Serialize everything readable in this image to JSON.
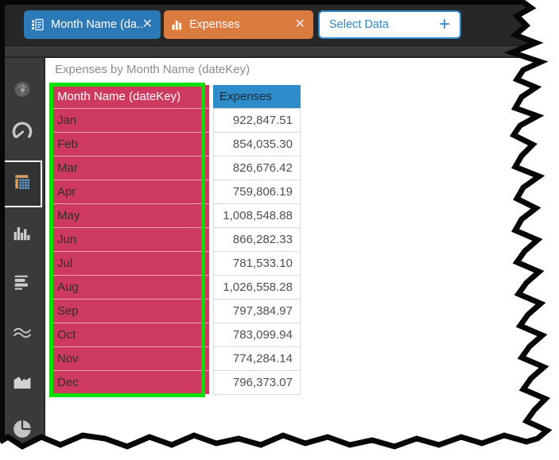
{
  "icons": {
    "close": "✕",
    "plus": "+"
  },
  "toolbar": {
    "field_chips": [
      {
        "label": "Month Name (da...",
        "role": "row-field",
        "color": "#2B79B7"
      },
      {
        "label": "Expenses",
        "role": "value-field",
        "color": "#DC7B3E"
      },
      {
        "label": "Select Data",
        "role": "add-field",
        "color": "#FFFFFF",
        "text_color": "#2E86C6"
      }
    ]
  },
  "sidebar": {
    "selected": "grid",
    "items": [
      {
        "name": "smart-insights",
        "selected": false
      },
      {
        "name": "gauge",
        "selected": false
      },
      {
        "name": "grid",
        "selected": true
      },
      {
        "name": "column-chart",
        "selected": false
      },
      {
        "name": "bar-chart",
        "selected": false
      },
      {
        "name": "line-chart",
        "selected": false
      },
      {
        "name": "area-chart",
        "selected": false
      },
      {
        "name": "pie-chart",
        "selected": false
      }
    ]
  },
  "main": {
    "title": "Expenses by Month Name (dateKey)",
    "table": {
      "columns": [
        {
          "label": "Month Name (dateKey)",
          "header_bg": "#CE3A5F",
          "selected": true
        },
        {
          "label": "Expenses",
          "header_bg": "#2E8CCB",
          "selected": false
        }
      ],
      "rows": [
        {
          "month": "Jan",
          "expenses": "922,847.51"
        },
        {
          "month": "Feb",
          "expenses": "854,035.30"
        },
        {
          "month": "Mar",
          "expenses": "826,676.42"
        },
        {
          "month": "Apr",
          "expenses": "759,806.19"
        },
        {
          "month": "May",
          "expenses": "1,008,548.88"
        },
        {
          "month": "Jun",
          "expenses": "866,282.33"
        },
        {
          "month": "Jul",
          "expenses": "781,533.10"
        },
        {
          "month": "Aug",
          "expenses": "1,026,558.28"
        },
        {
          "month": "Sep",
          "expenses": "797,384.97"
        },
        {
          "month": "Oct",
          "expenses": "783,099.94"
        },
        {
          "month": "Nov",
          "expenses": "774,284.14"
        },
        {
          "month": "Dec",
          "expenses": "796,373.07"
        }
      ],
      "selection_color": "#00DF00"
    }
  },
  "chart_data": {
    "type": "table",
    "title": "Expenses by Month Name (dateKey)",
    "columns": [
      "Month Name (dateKey)",
      "Expenses"
    ],
    "rows": [
      [
        "Jan",
        922847.51
      ],
      [
        "Feb",
        854035.3
      ],
      [
        "Mar",
        826676.42
      ],
      [
        "Apr",
        759806.19
      ],
      [
        "May",
        1008548.88
      ],
      [
        "Jun",
        866282.33
      ],
      [
        "Jul",
        781533.1
      ],
      [
        "Aug",
        1026558.28
      ],
      [
        "Sep",
        797384.97
      ],
      [
        "Oct",
        783099.94
      ],
      [
        "Nov",
        774284.14
      ],
      [
        "Dec",
        796373.07
      ]
    ]
  },
  "colors": {
    "toolbar_bg": "#272727",
    "sidebar_bg": "#3A3A3A",
    "chip_blue": "#2B79B7",
    "chip_orange": "#DC7B3E",
    "select_data_blue": "#2E86C6",
    "table_pink": "#CE3A5F",
    "table_header_blue": "#2E8CCB",
    "selection_green": "#00DF00"
  }
}
